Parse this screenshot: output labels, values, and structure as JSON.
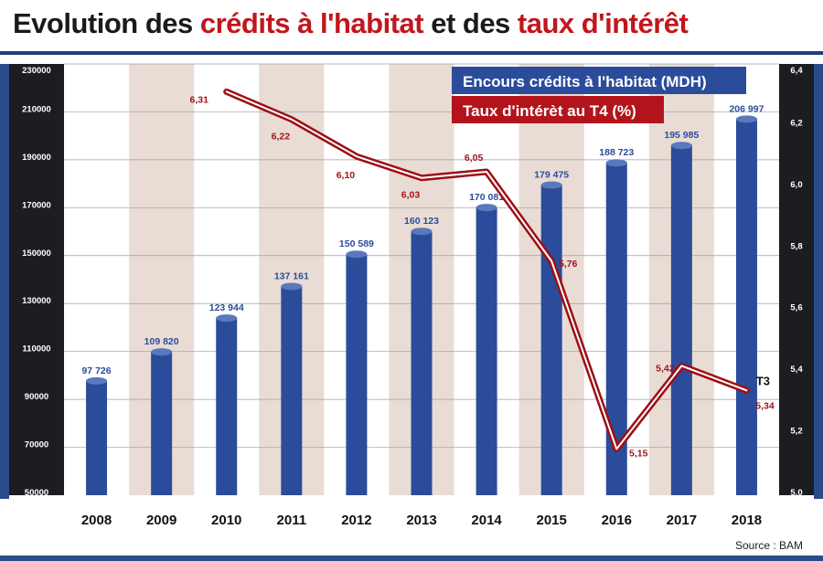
{
  "title": {
    "part1": "Evolution des ",
    "part2": "crédits à l'habitat",
    "part3": " et des ",
    "part4": "taux d'intérêt"
  },
  "source": "Source : BAM",
  "colors": {
    "bar": "#2b4c9a",
    "line": "#c0161d",
    "band": "#e9dcd4",
    "legend_blue": "#2b4c9a",
    "legend_red": "#b3141b"
  },
  "chart_data": {
    "type": "bar",
    "categories": [
      "2008",
      "2009",
      "2010",
      "2011",
      "2012",
      "2013",
      "2014",
      "2015",
      "2016",
      "2017",
      "2018"
    ],
    "series": [
      {
        "name": "Encours crédits à l'habitat (MDH)",
        "type": "bar",
        "axis": "left",
        "values": [
          97726,
          109820,
          123944,
          137161,
          150589,
          160123,
          170081,
          179475,
          188723,
          195985,
          206997
        ],
        "labels": [
          "97 726",
          "109 820",
          "123 944",
          "137 161",
          "150 589",
          "160 123",
          "170 081",
          "179 475",
          "188 723",
          "195 985",
          "206 997"
        ]
      },
      {
        "name": "Taux d'intérèt au T4 (%)",
        "type": "line",
        "axis": "right",
        "x": [
          "2010",
          "2011",
          "2012",
          "2013",
          "2014",
          "2015",
          "2016",
          "2017",
          "2018"
        ],
        "values": [
          6.31,
          6.22,
          6.1,
          6.03,
          6.05,
          5.76,
          5.15,
          5.42,
          5.34
        ],
        "labels": [
          "6,31",
          "6,22",
          "6,10",
          "6,03",
          "6,05",
          "5,76",
          "5,15",
          "5,42",
          "5,34"
        ]
      }
    ],
    "y_left": {
      "min": 50000,
      "max": 230000,
      "ticks": [
        50000,
        70000,
        90000,
        110000,
        130000,
        150000,
        170000,
        190000,
        210000,
        230000
      ],
      "tick_labels": [
        "50000",
        "70000",
        "90000",
        "110000",
        "130000",
        "150000",
        "170000",
        "190000",
        "210000",
        "230000"
      ]
    },
    "y_right": {
      "min": 5.0,
      "max": 6.4,
      "ticks": [
        5.0,
        5.2,
        5.4,
        5.6,
        5.8,
        6.0,
        6.2,
        6.4
      ],
      "tick_labels": [
        "5,0",
        "5,2",
        "5,4",
        "5,6",
        "5,8",
        "6,0",
        "6,2",
        "6,4"
      ]
    },
    "annotations": [
      {
        "text": "T3",
        "category": "2018"
      }
    ],
    "legend_position": "top-right",
    "grid": true
  }
}
